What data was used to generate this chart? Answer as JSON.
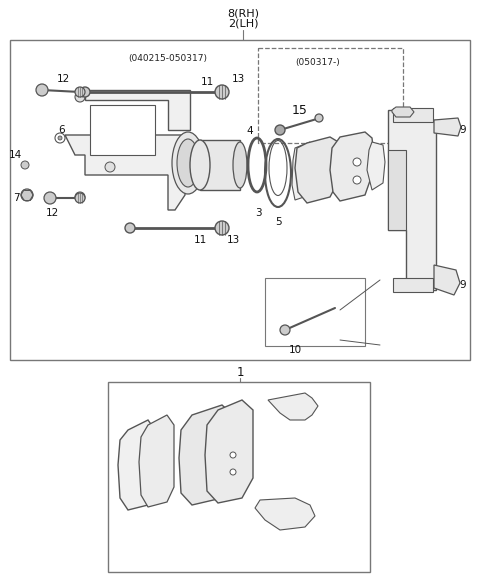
{
  "bg_color": "#ffffff",
  "gray_line": "#555555",
  "light_gray": "#aaaaaa",
  "box_color": "#777777",
  "dashed_color": "#888888",
  "title1": "8(RH)",
  "title2": "2(LH)",
  "note1": "(040215-050317)",
  "note2": "(050317-)",
  "label_15": "15",
  "figsize": [
    4.8,
    5.85
  ],
  "dpi": 100
}
